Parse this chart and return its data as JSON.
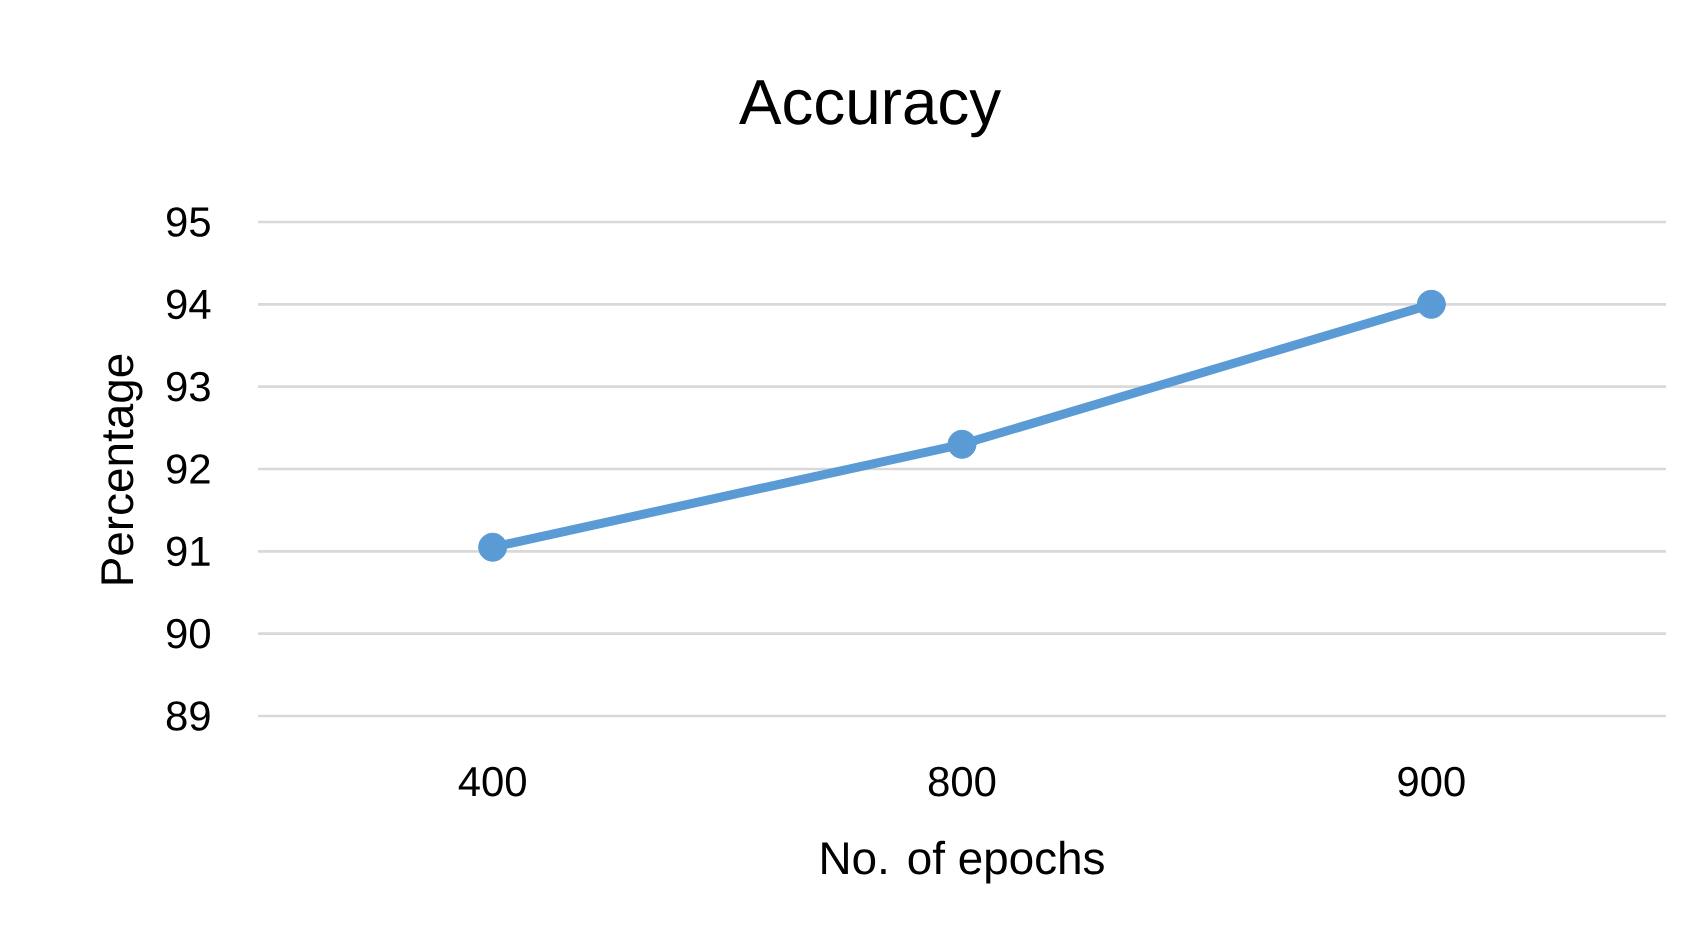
{
  "chart_data": {
    "type": "line",
    "title": "Accuracy",
    "xlabel": "No. of epochs",
    "ylabel": "Percentage",
    "categories": [
      "400",
      "800",
      "900"
    ],
    "values": [
      91.05,
      92.3,
      94
    ],
    "color": "#5b9bd5",
    "ylim": [
      89,
      95
    ],
    "yticks": [
      89,
      90,
      91,
      92,
      93,
      94,
      95
    ],
    "grid": "y",
    "marker": "circle",
    "line_style": "solid"
  }
}
